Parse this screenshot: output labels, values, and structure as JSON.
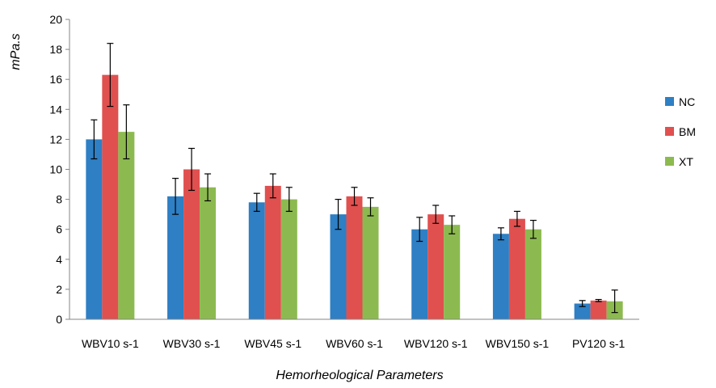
{
  "chart_data": {
    "type": "bar",
    "title": "",
    "xlabel": "Hemorheological Parameters",
    "ylabel": "mPa.s",
    "ylim": [
      0,
      20
    ],
    "yticks": [
      "0",
      "2",
      "4",
      "6",
      "8",
      "10",
      "12",
      "14",
      "16",
      "18",
      "20"
    ],
    "grid": false,
    "legend_position": "right",
    "categories": [
      "WBV10 s-1",
      "WBV30 s-1",
      "WBV45 s-1",
      "WBV60 s-1",
      "WBV120 s-1",
      "WBV150 s-1",
      "PV120 s-1"
    ],
    "series": [
      {
        "name": "NC",
        "color": "#2e7fc4",
        "values": [
          12.0,
          8.2,
          7.8,
          7.0,
          6.0,
          5.7,
          1.05
        ],
        "errors": [
          1.3,
          1.2,
          0.6,
          1.0,
          0.8,
          0.4,
          0.2
        ]
      },
      {
        "name": "BM",
        "color": "#e0504f",
        "values": [
          16.3,
          10.0,
          8.9,
          8.2,
          7.0,
          6.7,
          1.25
        ],
        "errors": [
          2.1,
          1.4,
          0.8,
          0.6,
          0.6,
          0.5,
          0.07
        ]
      },
      {
        "name": "XT",
        "color": "#8cba50",
        "values": [
          12.5,
          8.8,
          8.0,
          7.5,
          6.3,
          6.0,
          1.2
        ],
        "errors": [
          1.8,
          0.9,
          0.8,
          0.6,
          0.6,
          0.6,
          0.75
        ]
      }
    ]
  }
}
